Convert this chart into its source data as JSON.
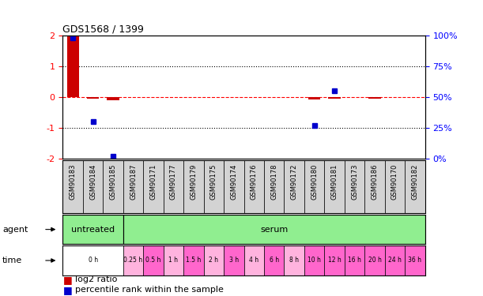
{
  "title": "GDS1568 / 1399",
  "samples": [
    "GSM90183",
    "GSM90184",
    "GSM90185",
    "GSM90187",
    "GSM90171",
    "GSM90177",
    "GSM90179",
    "GSM90175",
    "GSM90174",
    "GSM90176",
    "GSM90178",
    "GSM90172",
    "GSM90180",
    "GSM90181",
    "GSM90173",
    "GSM90186",
    "GSM90170",
    "GSM90182"
  ],
  "log2_ratio": [
    2.0,
    -0.05,
    -0.1,
    0.0,
    0.0,
    0.0,
    0.0,
    0.0,
    0.0,
    0.0,
    0.0,
    0.0,
    -0.08,
    -0.05,
    0.0,
    -0.05,
    0.0,
    0.0
  ],
  "percentile": [
    98,
    30,
    2,
    null,
    null,
    null,
    null,
    null,
    null,
    null,
    null,
    null,
    27,
    55,
    null,
    null,
    null,
    null
  ],
  "ylim": [
    -2,
    2
  ],
  "bar_color": "#cc0000",
  "dot_color": "#0000cc",
  "agent_untreated_cols": [
    0,
    1,
    2
  ],
  "agent_serum_cols": [
    3,
    4,
    5,
    6,
    7,
    8,
    9,
    10,
    11,
    12,
    13,
    14,
    15,
    16,
    17
  ],
  "time_labels": [
    "0 h",
    "0.25 h",
    "0.5 h",
    "1 h",
    "1.5 h",
    "2 h",
    "3 h",
    "4 h",
    "6 h",
    "8 h",
    "10 h",
    "12 h",
    "16 h",
    "20 h",
    "24 h",
    "36 h"
  ],
  "time_col_spans": [
    [
      0,
      1,
      2
    ],
    [
      3
    ],
    [
      4
    ],
    [
      5
    ],
    [
      6
    ],
    [
      7
    ],
    [
      8
    ],
    [
      9
    ],
    [
      10
    ],
    [
      11
    ],
    [
      12
    ],
    [
      13
    ],
    [
      14
    ],
    [
      15
    ],
    [
      16
    ],
    [
      17
    ]
  ],
  "time_colors": [
    "#ffffff",
    "#ffb3de",
    "#ff66cc",
    "#ffb3de",
    "#ff66cc",
    "#ffb3de",
    "#ff66cc",
    "#ffb3de",
    "#ff66cc",
    "#ffb3de",
    "#ff66cc",
    "#ff66cc",
    "#ff66cc",
    "#ff66cc",
    "#ff66cc",
    "#ff66cc"
  ],
  "color_untreated": "#90ee90",
  "color_serum": "#90ee90",
  "label_bg": "#d3d3d3",
  "legend_red": "#cc0000",
  "legend_blue": "#0000cc"
}
